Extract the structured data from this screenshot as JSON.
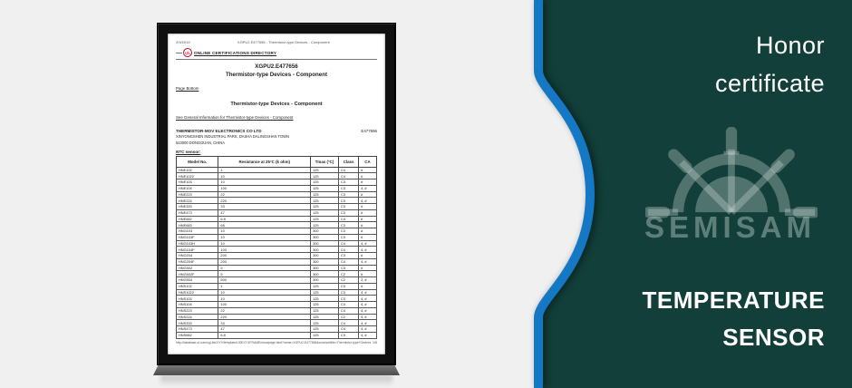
{
  "colors": {
    "panel_teal": "#123F39",
    "accent_blue": "#1478C4",
    "left_background": "#F0F0F0",
    "ul_red": "#C8102E",
    "watermark": "#7A918C"
  },
  "right_panel": {
    "title_lines": [
      "Honor",
      "certificate"
    ],
    "subtitle_lines": [
      "TEMPERATURE",
      "SENSOR"
    ],
    "watermark_text": "SEMISAM"
  },
  "document": {
    "browser_header": {
      "date": "2/9/2019",
      "title": "XGPU2.E477656 - Thermistor-type Devices - Component"
    },
    "ul_logo_text": "UL",
    "directory_label": "ONLINE CERTIFICATIONS DIRECTORY",
    "cert_id": "XGPU2.E477656",
    "cert_title": "Thermistor-type Devices - Component",
    "page_bottom_link": "Page Bottom",
    "section_title": "Thermistor-type Devices - Component",
    "general_info_link": "See General Information for Thermistor-type Devices - Component",
    "company": {
      "name": "THERMISTOR-MOV ELECTRONICS CO LTD",
      "file_number": "E477656",
      "address_line1": "XINYONGSHEN INDUSTRIAL PARK, DASHA DALINGSHAN TOWN",
      "address_line2": "523000 DONGGUAN, CHINA"
    },
    "table_label": "NTC sensor:",
    "table": {
      "headers": [
        "Model No.",
        "Resistance at 25°C (k ohm)",
        "Tmax (°C)",
        "Class",
        "CA"
      ],
      "rows": [
        [
          "HNE102",
          "1",
          "125",
          "C4",
          "#"
        ],
        [
          "HNE1022",
          "10",
          "125",
          "C4",
          "#"
        ],
        [
          "HNE103",
          "10",
          "125",
          "C3",
          "#"
        ],
        [
          "HNE104",
          "100",
          "125",
          "C3",
          "4, #"
        ],
        [
          "HNE223",
          "22",
          "125",
          "C3",
          "#"
        ],
        [
          "HNE224",
          "220",
          "125",
          "C3",
          "4, #"
        ],
        [
          "HNE333",
          "33",
          "125",
          "C3",
          "#"
        ],
        [
          "HNE473",
          "47",
          "125",
          "C3",
          "#"
        ],
        [
          "HNE682",
          "6.8",
          "125",
          "C4",
          "#"
        ],
        [
          "HNE683",
          "68",
          "125",
          "C3",
          "#"
        ],
        [
          "HNG103",
          "10",
          "300",
          "C3",
          "#"
        ],
        [
          "HNG103F",
          "10",
          "300",
          "C3",
          "#"
        ],
        [
          "HNG103H",
          "10",
          "300",
          "C4",
          "4, #"
        ],
        [
          "HNG104F",
          "100",
          "300",
          "C4",
          "4, #"
        ],
        [
          "HNG204",
          "200",
          "300",
          "C3",
          "#"
        ],
        [
          "HNG204F",
          "200",
          "300",
          "C4",
          "4, #"
        ],
        [
          "HNG502",
          "5",
          "300",
          "C3",
          "#"
        ],
        [
          "HNG502F",
          "5",
          "300",
          "C2",
          "#"
        ],
        [
          "HNG504",
          "500",
          "300",
          "C2",
          "2, #"
        ],
        [
          "HNS102",
          "1",
          "125",
          "C3",
          "#"
        ],
        [
          "HNS1022",
          "10",
          "125",
          "C3",
          "4, #"
        ],
        [
          "HNS103",
          "10",
          "125",
          "C3",
          "4, #"
        ],
        [
          "HNS104",
          "100",
          "125",
          "C4",
          "4, #"
        ],
        [
          "HNS223",
          "22",
          "125",
          "C4",
          "4, #"
        ],
        [
          "HNS224",
          "220",
          "125",
          "C2",
          "4, #"
        ],
        [
          "HNS333",
          "33",
          "125",
          "C4",
          "4, #"
        ],
        [
          "HNS473",
          "47",
          "125",
          "C4",
          "4, #"
        ],
        [
          "HNS682",
          "6.8",
          "125",
          "C3",
          "4, #"
        ]
      ]
    },
    "footer": {
      "url": "http://database.ul.com/cgi-bin/XYV/template/LISEXT/1FRAME/showpage.html?name=XGPU2.E477656&ccnshorttitle=Thermistor-type+Devices+-+Compo...",
      "page_indicator": "1/8"
    }
  }
}
